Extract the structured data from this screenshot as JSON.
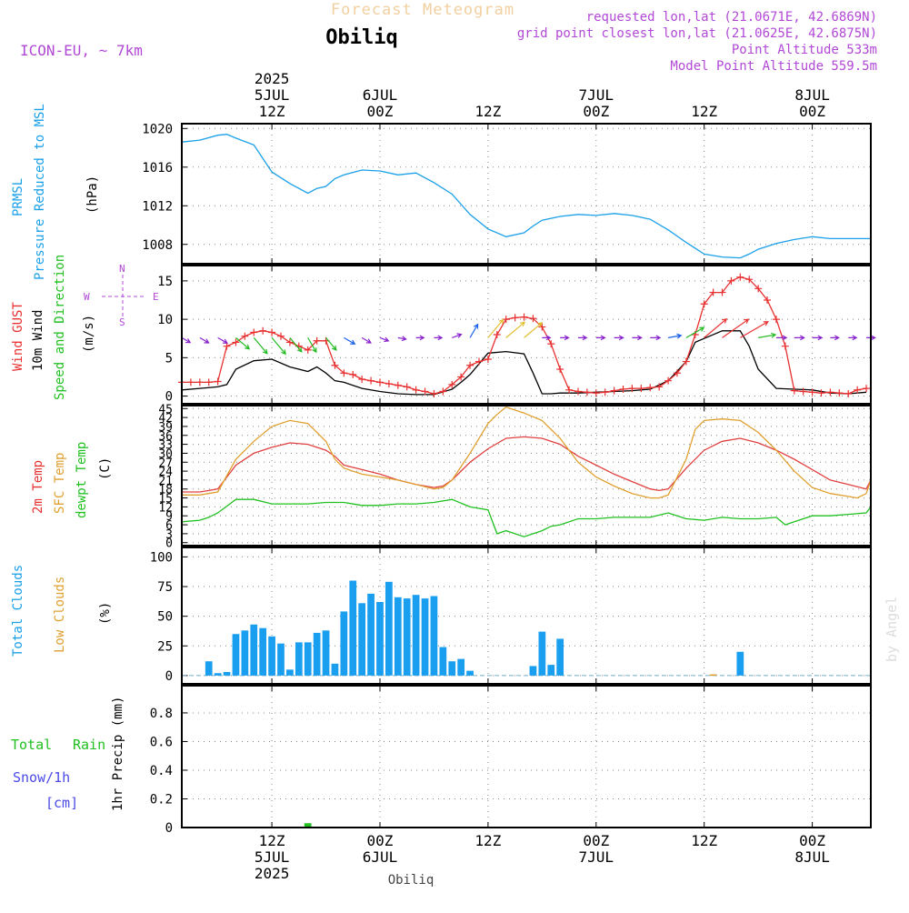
{
  "header": {
    "faded_title": "Forecast Meteogram",
    "station": "Obiliq",
    "model": "ICON-EU, ~ 7km",
    "info": [
      "requested lon,lat (21.0671E, 42.6869N)",
      "grid point closest lon,lat (21.0625E, 42.6875N)",
      "Point Altitude 533m",
      "Model Point Altitude 559.5m"
    ]
  },
  "footer": {
    "station": "Obiliq",
    "watermark": "by Angel"
  },
  "time_axis": {
    "top": [
      {
        "x": 10,
        "lines": [
          "2025",
          "5JUL",
          "12Z"
        ]
      },
      {
        "x": 22,
        "lines": [
          "6JUL",
          "00Z"
        ]
      },
      {
        "x": 34,
        "lines": [
          "",
          "12Z"
        ]
      },
      {
        "x": 46,
        "lines": [
          "7JUL",
          "00Z"
        ]
      },
      {
        "x": 58,
        "lines": [
          "",
          "12Z"
        ]
      },
      {
        "x": 70,
        "lines": [
          "8JUL",
          "00Z"
        ]
      }
    ],
    "bottom": [
      {
        "x": 10,
        "lines": [
          "12Z",
          "5JUL",
          "2025"
        ]
      },
      {
        "x": 22,
        "lines": [
          "00Z",
          "6JUL"
        ]
      },
      {
        "x": 34,
        "lines": [
          "12Z"
        ]
      },
      {
        "x": 46,
        "lines": [
          "00Z",
          "7JUL"
        ]
      },
      {
        "x": 58,
        "lines": [
          "12Z"
        ]
      },
      {
        "x": 70,
        "lines": [
          "00Z",
          "8JUL"
        ]
      }
    ]
  },
  "colors": {
    "pressure": "#1aa0e8",
    "gust": "#e83030",
    "wind": "#000000",
    "wind_arrows": "#22bb22",
    "t2m": "#e04040",
    "sfc": "#e0a030",
    "dewpt": "#20c020",
    "clouds": "#1a9ef0",
    "lowclouds": "#e0a030",
    "rain": "#20c020",
    "snow": "#4a4ae8",
    "label_blue": "#1aa0e8",
    "label_black": "#000000",
    "label_red": "#e83030",
    "label_orange": "#e0a030",
    "label_green": "#20c020",
    "compass": "#b248d6"
  },
  "chart_data": [
    {
      "type": "line",
      "title": "",
      "ylabel": [
        "PRMSL",
        "Pressure Reduced to MSL",
        "(hPa)"
      ],
      "xlim": [
        0,
        76.5
      ],
      "ylim": [
        1006,
        1020.5
      ],
      "yticks": [
        1008,
        1012,
        1016,
        1020
      ],
      "grid": true,
      "series": [
        {
          "name": "PRMSL",
          "color": "#1aa0e8",
          "x": [
            0,
            2,
            4,
            5,
            6,
            8,
            10,
            12,
            14,
            15,
            16,
            17,
            18,
            20,
            22,
            24,
            26,
            28,
            30,
            32,
            34,
            36,
            38,
            39,
            40,
            42,
            44,
            46,
            48,
            50,
            52,
            54,
            56,
            58,
            60,
            62,
            63,
            64,
            66,
            68,
            70,
            72,
            74,
            76.5
          ],
          "y": [
            1018.6,
            1018.8,
            1019.3,
            1019.4,
            1019.0,
            1018.3,
            1015.5,
            1014.3,
            1013.3,
            1013.8,
            1014.0,
            1014.8,
            1015.2,
            1015.7,
            1015.6,
            1015.2,
            1015.4,
            1014.4,
            1013.2,
            1011.1,
            1009.6,
            1008.8,
            1009.2,
            1009.9,
            1010.5,
            1010.9,
            1011.1,
            1011.0,
            1011.2,
            1011.0,
            1010.6,
            1009.5,
            1008.2,
            1007.0,
            1006.7,
            1006.6,
            1007.0,
            1007.5,
            1008.1,
            1008.5,
            1008.8,
            1008.6,
            1008.6,
            1008.6
          ]
        }
      ]
    },
    {
      "type": "line",
      "title": "",
      "ylabel": [
        "Wind GUST",
        "10m Wind",
        "Speed and Direction",
        "(m/s)"
      ],
      "compass": {
        "n": "N",
        "s": "S",
        "e": "E",
        "w": "W"
      },
      "xlim": [
        0,
        76.5
      ],
      "ylim": [
        -1,
        17
      ],
      "yticks": [
        0,
        5,
        10,
        15
      ],
      "grid": true,
      "series": [
        {
          "name": "10m Wind",
          "color": "#000000",
          "x": [
            0,
            2,
            4,
            5,
            6,
            8,
            10,
            12,
            14,
            15,
            16,
            17,
            18,
            20,
            22,
            24,
            26,
            28,
            30,
            31,
            32,
            34,
            36,
            38,
            39,
            40,
            41,
            42,
            44,
            46,
            48,
            50,
            52,
            54,
            56,
            57,
            58,
            60,
            62,
            63,
            64,
            66,
            68,
            70,
            72,
            74,
            76
          ],
          "y": [
            0.8,
            1.0,
            1.2,
            1.5,
            3.5,
            4.6,
            4.8,
            3.8,
            3.2,
            3.8,
            3.0,
            2.0,
            1.8,
            1.0,
            0.6,
            0.3,
            0.2,
            0.2,
            0.9,
            1.8,
            2.8,
            5.6,
            5.8,
            5.5,
            3.0,
            0.3,
            0.3,
            0.4,
            0.4,
            0.5,
            0.6,
            0.7,
            0.9,
            2.0,
            4.5,
            7.0,
            7.5,
            8.5,
            8.5,
            6.5,
            3.5,
            1.0,
            0.9,
            0.8,
            0.4,
            0.3,
            0.5
          ]
        },
        {
          "name": "Wind GUST",
          "color": "#e83030",
          "markers": "plus",
          "x": [
            0,
            1,
            2,
            3,
            4,
            5,
            6,
            7,
            8,
            9,
            10,
            11,
            12,
            13,
            14,
            15,
            16,
            17,
            18,
            19,
            20,
            21,
            22,
            23,
            24,
            25,
            26,
            27,
            28,
            29,
            30,
            31,
            32,
            33,
            34,
            35,
            36,
            37,
            38,
            39,
            40,
            41,
            42,
            43,
            44,
            45,
            46,
            47,
            48,
            49,
            50,
            51,
            52,
            53,
            54,
            55,
            56,
            57,
            58,
            59,
            60,
            61,
            62,
            63,
            64,
            65,
            66,
            67,
            68,
            69,
            70,
            71,
            72,
            73,
            74,
            75,
            76
          ],
          "y": [
            1.8,
            1.8,
            1.8,
            1.8,
            1.9,
            6.5,
            7.0,
            7.8,
            8.3,
            8.5,
            8.3,
            7.8,
            7.0,
            6.5,
            6.0,
            7.2,
            7.2,
            4.0,
            3.0,
            2.8,
            2.2,
            2.0,
            1.8,
            1.6,
            1.4,
            1.2,
            0.8,
            0.6,
            0.3,
            0.6,
            1.5,
            2.5,
            4.0,
            4.5,
            4.8,
            8.0,
            10.0,
            10.2,
            10.3,
            10.1,
            9.0,
            6.8,
            3.5,
            0.8,
            0.6,
            0.5,
            0.4,
            0.5,
            0.7,
            0.9,
            1.0,
            1.0,
            1.1,
            1.2,
            2.0,
            3.0,
            4.5,
            8.0,
            12.0,
            13.5,
            13.5,
            15.0,
            15.5,
            15.2,
            14.0,
            12.5,
            10.0,
            6.5,
            0.7,
            0.6,
            0.5,
            0.4,
            0.5,
            0.4,
            0.3,
            0.8,
            1.0
          ]
        }
      ],
      "arrows": {
        "color_start": "#22bb22",
        "color_mid": "#e0c030",
        "color_high": "#e83030",
        "color_calm": "#8822cc",
        "color_light": "#1a60e8",
        "x": [
          0,
          2,
          4,
          6,
          8,
          10,
          12,
          14,
          16,
          18,
          20,
          22,
          24,
          26,
          28,
          30,
          32,
          34,
          36,
          38,
          40,
          42,
          44,
          46,
          48,
          50,
          52,
          54,
          56,
          58,
          60,
          62,
          64,
          66,
          68,
          70,
          72,
          74,
          76
        ],
        "speed": [
          0.8,
          1.0,
          1.2,
          3.5,
          4.6,
          4.8,
          3.8,
          3.2,
          3.0,
          1.8,
          1.0,
          0.6,
          0.3,
          0.2,
          0.2,
          0.9,
          2.8,
          5.6,
          5.8,
          5.5,
          0.3,
          0.4,
          0.4,
          0.5,
          0.6,
          0.7,
          0.9,
          2.0,
          4.5,
          7.5,
          8.5,
          8.5,
          3.5,
          1.0,
          0.9,
          0.8,
          0.4,
          0.3,
          0.5
        ],
        "dir_deg": [
          300,
          300,
          300,
          310,
          320,
          320,
          320,
          330,
          320,
          300,
          300,
          290,
          280,
          270,
          270,
          250,
          210,
          220,
          230,
          230,
          270,
          270,
          270,
          270,
          270,
          270,
          270,
          260,
          240,
          230,
          235,
          240,
          260,
          270,
          270,
          270,
          270,
          270,
          270
        ]
      }
    },
    {
      "type": "line",
      "title": "",
      "ylabel": [
        "2m Temp",
        "SFC Temp",
        "dewpt Temp",
        "(C)"
      ],
      "xlim": [
        0,
        76.5
      ],
      "ylim": [
        -1,
        46
      ],
      "yticks": [
        0,
        3,
        6,
        9,
        12,
        15,
        18,
        21,
        24,
        27,
        30,
        33,
        36,
        39,
        42,
        45
      ],
      "ytick_labels": [
        "0",
        "3",
        "6",
        "9",
        "12",
        "15",
        "18",
        "21",
        "24",
        "27",
        "30",
        "33",
        "36",
        "39",
        "42",
        "45"
      ],
      "grid": true,
      "series": [
        {
          "name": "2m Temp",
          "color": "#e04040",
          "x": [
            0,
            2,
            3,
            4,
            6,
            8,
            10,
            12,
            14,
            16,
            17,
            18,
            20,
            22,
            24,
            26,
            28,
            29,
            30,
            32,
            34,
            36,
            38,
            40,
            42,
            44,
            46,
            48,
            50,
            52,
            53,
            54,
            56,
            58,
            60,
            62,
            64,
            66,
            68,
            70,
            72,
            74,
            76,
            76.5
          ],
          "y": [
            17,
            17,
            17.5,
            18,
            26,
            30,
            32,
            33.5,
            33,
            31,
            29,
            26,
            24.5,
            23,
            21,
            19.5,
            18.5,
            19,
            21,
            27,
            31.5,
            35,
            35.5,
            35,
            33,
            29,
            26,
            23,
            20.5,
            18,
            17.5,
            18,
            25,
            31,
            34,
            35,
            33.5,
            31,
            28,
            24.5,
            21,
            19.5,
            18,
            21
          ]
        },
        {
          "name": "SFC Temp",
          "color": "#e0a030",
          "x": [
            0,
            2,
            3,
            4,
            6,
            8,
            10,
            12,
            14,
            16,
            17,
            18,
            20,
            22,
            24,
            26,
            28,
            29,
            30,
            32,
            34,
            35,
            36,
            38,
            40,
            42,
            44,
            46,
            48,
            50,
            52,
            53,
            54,
            56,
            57,
            58,
            60,
            62,
            64,
            66,
            68,
            70,
            72,
            74,
            75,
            76,
            76.5
          ],
          "y": [
            16,
            16,
            16.5,
            17,
            28,
            34,
            39,
            41,
            40,
            34,
            28,
            25,
            23,
            22,
            21,
            19.5,
            18,
            18.5,
            21,
            30,
            40,
            43,
            45.5,
            43.5,
            41,
            35,
            27,
            22,
            19,
            16.5,
            15,
            15,
            16,
            28,
            38,
            41,
            41.5,
            41,
            37,
            31,
            24,
            18.5,
            16.5,
            15.5,
            15,
            16.5,
            21
          ]
        },
        {
          "name": "dewpt Temp",
          "color": "#20c020",
          "x": [
            0,
            2,
            3,
            4,
            6,
            8,
            10,
            12,
            14,
            16,
            18,
            20,
            22,
            24,
            26,
            28,
            30,
            32,
            34,
            35,
            36,
            38,
            40,
            41,
            42,
            44,
            46,
            48,
            50,
            52,
            54,
            56,
            58,
            60,
            62,
            64,
            66,
            67,
            68,
            70,
            72,
            74,
            76,
            76.5
          ],
          "y": [
            7,
            7.5,
            8.5,
            10,
            14.5,
            14.5,
            13,
            13,
            13,
            13.5,
            13.5,
            12.5,
            12.5,
            13,
            13,
            13.5,
            14.5,
            12,
            11,
            3,
            4,
            2,
            4,
            5.5,
            6,
            8,
            8,
            8.5,
            8.5,
            8.5,
            10,
            8,
            7.5,
            8.5,
            8,
            8,
            8.5,
            6,
            7,
            9,
            9,
            9.5,
            10,
            12
          ]
        }
      ]
    },
    {
      "type": "bar",
      "title": "",
      "ylabel": [
        "Total Clouds",
        "Low Clouds",
        "(%)"
      ],
      "xlim": [
        0,
        76.5
      ],
      "ylim": [
        -7,
        108
      ],
      "yticks": [
        0,
        25,
        50,
        75,
        100
      ],
      "grid": true,
      "series": [
        {
          "name": "Total Clouds",
          "color": "#1a9ef0",
          "x": [
            3,
            4,
            5,
            6,
            7,
            8,
            9,
            10,
            11,
            12,
            13,
            14,
            15,
            16,
            17,
            18,
            19,
            20,
            21,
            22,
            23,
            24,
            25,
            26,
            27,
            28,
            29,
            30,
            31,
            32,
            39,
            40,
            41,
            42,
            62
          ],
          "values": [
            12,
            2,
            3,
            35,
            38,
            43,
            40,
            33,
            27,
            5,
            28,
            28,
            36,
            38,
            10,
            54,
            80,
            61,
            69,
            62,
            79,
            66,
            65,
            68,
            65,
            67,
            24,
            12,
            14,
            4,
            8,
            37,
            9,
            31,
            20
          ]
        },
        {
          "name": "Low Clouds",
          "color": "#e0a030",
          "x": [
            59
          ],
          "values": [
            1
          ]
        }
      ]
    },
    {
      "type": "bar",
      "title": "",
      "ylabel": [
        "1hr Precip (mm)"
      ],
      "legend": [
        "Total",
        "Rain",
        "Snow/1h",
        "[cm]"
      ],
      "xlim": [
        0,
        76.5
      ],
      "ylim": [
        0,
        0.99
      ],
      "yticks": [
        0,
        0.2,
        0.4,
        0.6,
        0.8
      ],
      "ytick_labels": [
        "0",
        "0.2",
        "0.4",
        "0.6",
        "0.8"
      ],
      "grid": true,
      "series": [
        {
          "name": "Total Rain",
          "color": "#20c020",
          "x": [
            14
          ],
          "values": [
            0.03
          ]
        }
      ]
    }
  ]
}
